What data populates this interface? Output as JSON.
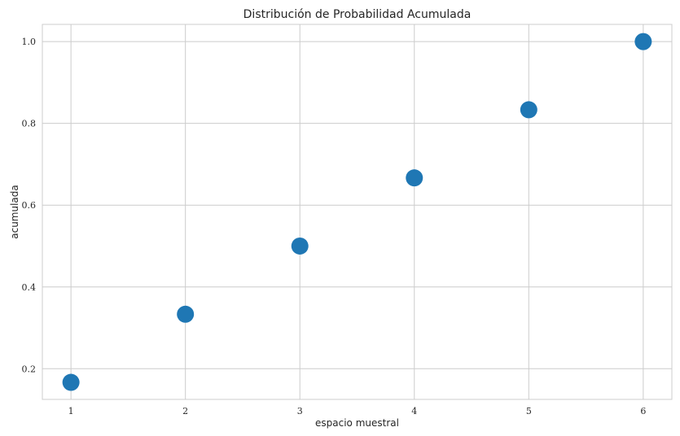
{
  "chart_data": {
    "type": "scatter",
    "title": "Distribución de Probabilidad Acumulada",
    "xlabel": "espacio muestral",
    "ylabel": "acumulada",
    "x": [
      1,
      2,
      3,
      4,
      5,
      6
    ],
    "y": [
      0.1667,
      0.3333,
      0.5,
      0.6667,
      0.8333,
      1.0
    ],
    "xlim": [
      0.75,
      6.25
    ],
    "ylim": [
      0.125,
      1.042
    ],
    "xticks": [
      "1",
      "2",
      "3",
      "4",
      "5",
      "6"
    ],
    "yticks": [
      "0.2",
      "0.4",
      "0.6",
      "0.8",
      "1.0"
    ],
    "grid": true,
    "marker_color": "#1f77b4",
    "grid_color": "#cccccc"
  }
}
